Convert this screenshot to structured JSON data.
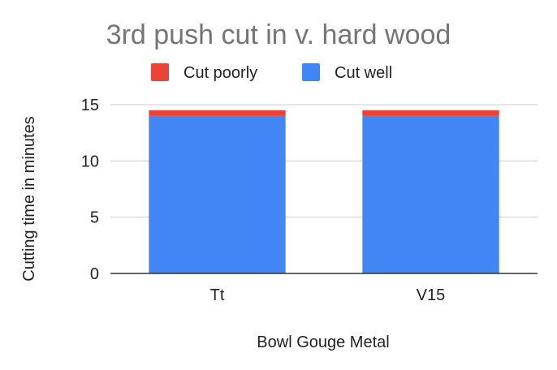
{
  "chart_data": {
    "type": "bar",
    "stacked": true,
    "title": "3rd push cut in v. hard wood",
    "xlabel": "Bowl Gouge Metal",
    "ylabel": "Cutting time in minutes",
    "categories": [
      "Tt",
      "V15"
    ],
    "series": [
      {
        "name": "Cut well",
        "values": [
          14,
          14
        ],
        "color": "#4285f4"
      },
      {
        "name": "Cut poorly",
        "values": [
          0.5,
          0.5
        ],
        "color": "#ea4335"
      }
    ],
    "legend_order": [
      "Cut poorly",
      "Cut well"
    ],
    "legend_position": "top",
    "ylim": [
      0,
      15
    ],
    "yticks": [
      0,
      5,
      10,
      15
    ],
    "grid": true
  }
}
